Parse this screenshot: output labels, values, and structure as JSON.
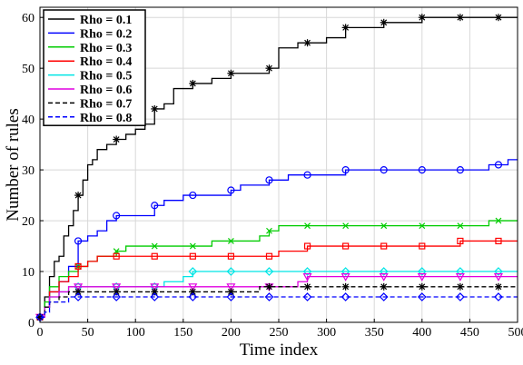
{
  "chart_data": {
    "type": "line",
    "title": "",
    "xlabel": "Time index",
    "ylabel": "Number of rules",
    "xlim": [
      0,
      500
    ],
    "ylim": [
      0,
      62
    ],
    "xticks": [
      "0",
      "50",
      "100",
      "150",
      "200",
      "250",
      "300",
      "350",
      "400",
      "450",
      "500"
    ],
    "yticks": [
      "0",
      "10",
      "20",
      "30",
      "40",
      "50",
      "60"
    ],
    "grid": true,
    "legend_position": "top-left",
    "series": [
      {
        "name": "Rho = 0.1",
        "color": "#000000",
        "dash": "solid",
        "marker": "star",
        "x": [
          0,
          5,
          10,
          15,
          20,
          25,
          30,
          35,
          40,
          45,
          50,
          55,
          60,
          65,
          70,
          75,
          80,
          90,
          100,
          110,
          120,
          130,
          140,
          160,
          180,
          200,
          220,
          240,
          250,
          270,
          280,
          300,
          320,
          340,
          360,
          400,
          440,
          480,
          500
        ],
        "y": [
          1,
          5,
          9,
          12,
          13,
          17,
          19,
          22,
          25,
          28,
          31,
          32,
          34,
          34,
          35,
          35,
          36,
          37,
          38,
          39,
          42,
          43,
          46,
          47,
          48,
          49,
          49,
          50,
          54,
          55,
          55,
          56,
          58,
          58,
          59,
          60,
          60,
          60,
          60
        ],
        "markers_x": [
          0,
          40,
          80,
          120,
          160,
          200,
          240,
          280,
          320,
          360,
          400,
          440,
          480
        ]
      },
      {
        "name": "Rho = 0.2",
        "color": "#0000ff",
        "dash": "solid",
        "marker": "circle",
        "x": [
          0,
          5,
          10,
          20,
          30,
          40,
          50,
          60,
          70,
          80,
          100,
          120,
          130,
          150,
          160,
          180,
          200,
          210,
          230,
          240,
          260,
          280,
          300,
          320,
          360,
          400,
          440,
          470,
          480,
          490,
          500
        ],
        "y": [
          1,
          3,
          6,
          8,
          11,
          16,
          17,
          18,
          20,
          21,
          21,
          23,
          24,
          25,
          25,
          25,
          26,
          27,
          27,
          28,
          29,
          29,
          29,
          30,
          30,
          30,
          30,
          31,
          31,
          32,
          32
        ],
        "markers_x": [
          0,
          40,
          80,
          120,
          160,
          200,
          240,
          280,
          320,
          360,
          400,
          440,
          480
        ]
      },
      {
        "name": "Rho = 0.3",
        "color": "#00cc00",
        "dash": "solid",
        "marker": "x",
        "x": [
          0,
          5,
          10,
          20,
          30,
          40,
          50,
          60,
          80,
          90,
          100,
          120,
          160,
          180,
          200,
          230,
          240,
          250,
          280,
          320,
          360,
          400,
          440,
          470,
          480,
          500
        ],
        "y": [
          1,
          4,
          7,
          9,
          10,
          11,
          12,
          13,
          14,
          15,
          15,
          15,
          15,
          16,
          16,
          17,
          18,
          19,
          19,
          19,
          19,
          19,
          19,
          20,
          20,
          20
        ],
        "markers_x": [
          0,
          40,
          80,
          120,
          160,
          200,
          240,
          280,
          320,
          360,
          400,
          440,
          480
        ]
      },
      {
        "name": "Rho = 0.4",
        "color": "#ff0000",
        "dash": "solid",
        "marker": "square",
        "x": [
          0,
          5,
          10,
          20,
          30,
          40,
          50,
          60,
          80,
          120,
          160,
          200,
          240,
          250,
          280,
          320,
          360,
          400,
          440,
          480,
          500
        ],
        "y": [
          1,
          3,
          6,
          8,
          9,
          11,
          12,
          13,
          13,
          13,
          13,
          13,
          13,
          14,
          15,
          15,
          15,
          15,
          16,
          16,
          16
        ],
        "markers_x": [
          0,
          40,
          80,
          120,
          160,
          200,
          240,
          280,
          320,
          360,
          400,
          440,
          480
        ]
      },
      {
        "name": "Rho = 0.5",
        "color": "#00e5e5",
        "dash": "solid",
        "marker": "diamond",
        "x": [
          0,
          5,
          10,
          20,
          30,
          40,
          60,
          80,
          120,
          130,
          150,
          160,
          200,
          240,
          280,
          320,
          360,
          400,
          440,
          480,
          500
        ],
        "y": [
          1,
          3,
          5,
          6,
          7,
          7,
          7,
          7,
          7,
          8,
          9,
          10,
          10,
          10,
          10,
          10,
          10,
          10,
          10,
          10,
          10
        ],
        "markers_x": [
          0,
          40,
          80,
          120,
          160,
          200,
          240,
          280,
          320,
          360,
          400,
          440,
          480
        ]
      },
      {
        "name": "Rho = 0.6",
        "color": "#e000e0",
        "dash": "solid",
        "marker": "triangle-down",
        "x": [
          0,
          5,
          10,
          20,
          30,
          40,
          80,
          120,
          160,
          200,
          240,
          270,
          280,
          320,
          360,
          400,
          440,
          480,
          500
        ],
        "y": [
          1,
          3,
          5,
          6,
          7,
          7,
          7,
          7,
          7,
          7,
          7,
          8,
          9,
          9,
          9,
          9,
          9,
          9,
          9
        ],
        "markers_x": [
          0,
          40,
          80,
          120,
          160,
          200,
          240,
          280,
          320,
          360,
          400,
          440,
          480
        ]
      },
      {
        "name": "Rho = 0.7",
        "color": "#000000",
        "dash": "dashed",
        "marker": "star",
        "x": [
          0,
          5,
          10,
          20,
          30,
          40,
          80,
          120,
          160,
          200,
          230,
          240,
          280,
          320,
          360,
          400,
          440,
          480,
          500
        ],
        "y": [
          1,
          3,
          4,
          5,
          6,
          6,
          6,
          6,
          6,
          6,
          7,
          7,
          7,
          7,
          7,
          7,
          7,
          7,
          7
        ],
        "markers_x": [
          0,
          40,
          80,
          120,
          160,
          200,
          240,
          280,
          320,
          360,
          400,
          440,
          480
        ]
      },
      {
        "name": "Rho = 0.8",
        "color": "#0000ff",
        "dash": "dashed",
        "marker": "diamond",
        "x": [
          0,
          5,
          10,
          20,
          30,
          40,
          80,
          120,
          160,
          200,
          240,
          280,
          320,
          360,
          400,
          440,
          480,
          500
        ],
        "y": [
          1,
          2,
          4,
          4,
          5,
          5,
          5,
          5,
          5,
          5,
          5,
          5,
          5,
          5,
          5,
          5,
          5,
          5
        ],
        "markers_x": [
          0,
          40,
          80,
          120,
          160,
          200,
          240,
          280,
          320,
          360,
          400,
          440,
          480
        ]
      }
    ]
  }
}
